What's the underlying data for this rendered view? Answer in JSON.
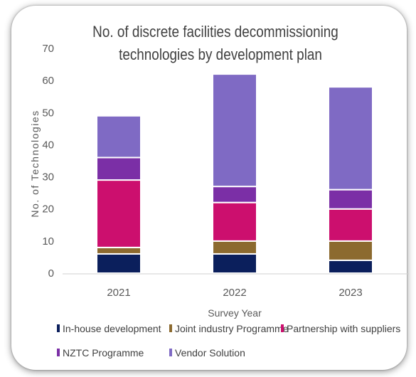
{
  "chart_data": {
    "type": "bar",
    "stacked": true,
    "title_lines": [
      "No. of discrete facilities decommissioning",
      "technologies by development plan"
    ],
    "xlabel": "Survey Year",
    "ylabel": "No. of Technologies",
    "categories": [
      "2021",
      "2022",
      "2023"
    ],
    "ylim": [
      0,
      70
    ],
    "yticks": [
      0,
      10,
      20,
      30,
      40,
      50,
      60,
      70
    ],
    "grid": false,
    "legend_position": "bottom",
    "series": [
      {
        "name": "In-house development",
        "color": "#0b1f5c",
        "values": [
          6,
          6,
          4
        ]
      },
      {
        "name": "Joint industry Programme",
        "color": "#8c6a2f",
        "values": [
          2,
          4,
          6
        ]
      },
      {
        "name": "Partnership with suppliers",
        "color": "#cc0f6e",
        "values": [
          21,
          12,
          10
        ]
      },
      {
        "name": "NZTC Programme",
        "color": "#7b2fa6",
        "values": [
          7,
          5,
          6
        ]
      },
      {
        "name": "Vendor Solution",
        "color": "#7f6ac4",
        "values": [
          13,
          35,
          32
        ]
      }
    ]
  }
}
